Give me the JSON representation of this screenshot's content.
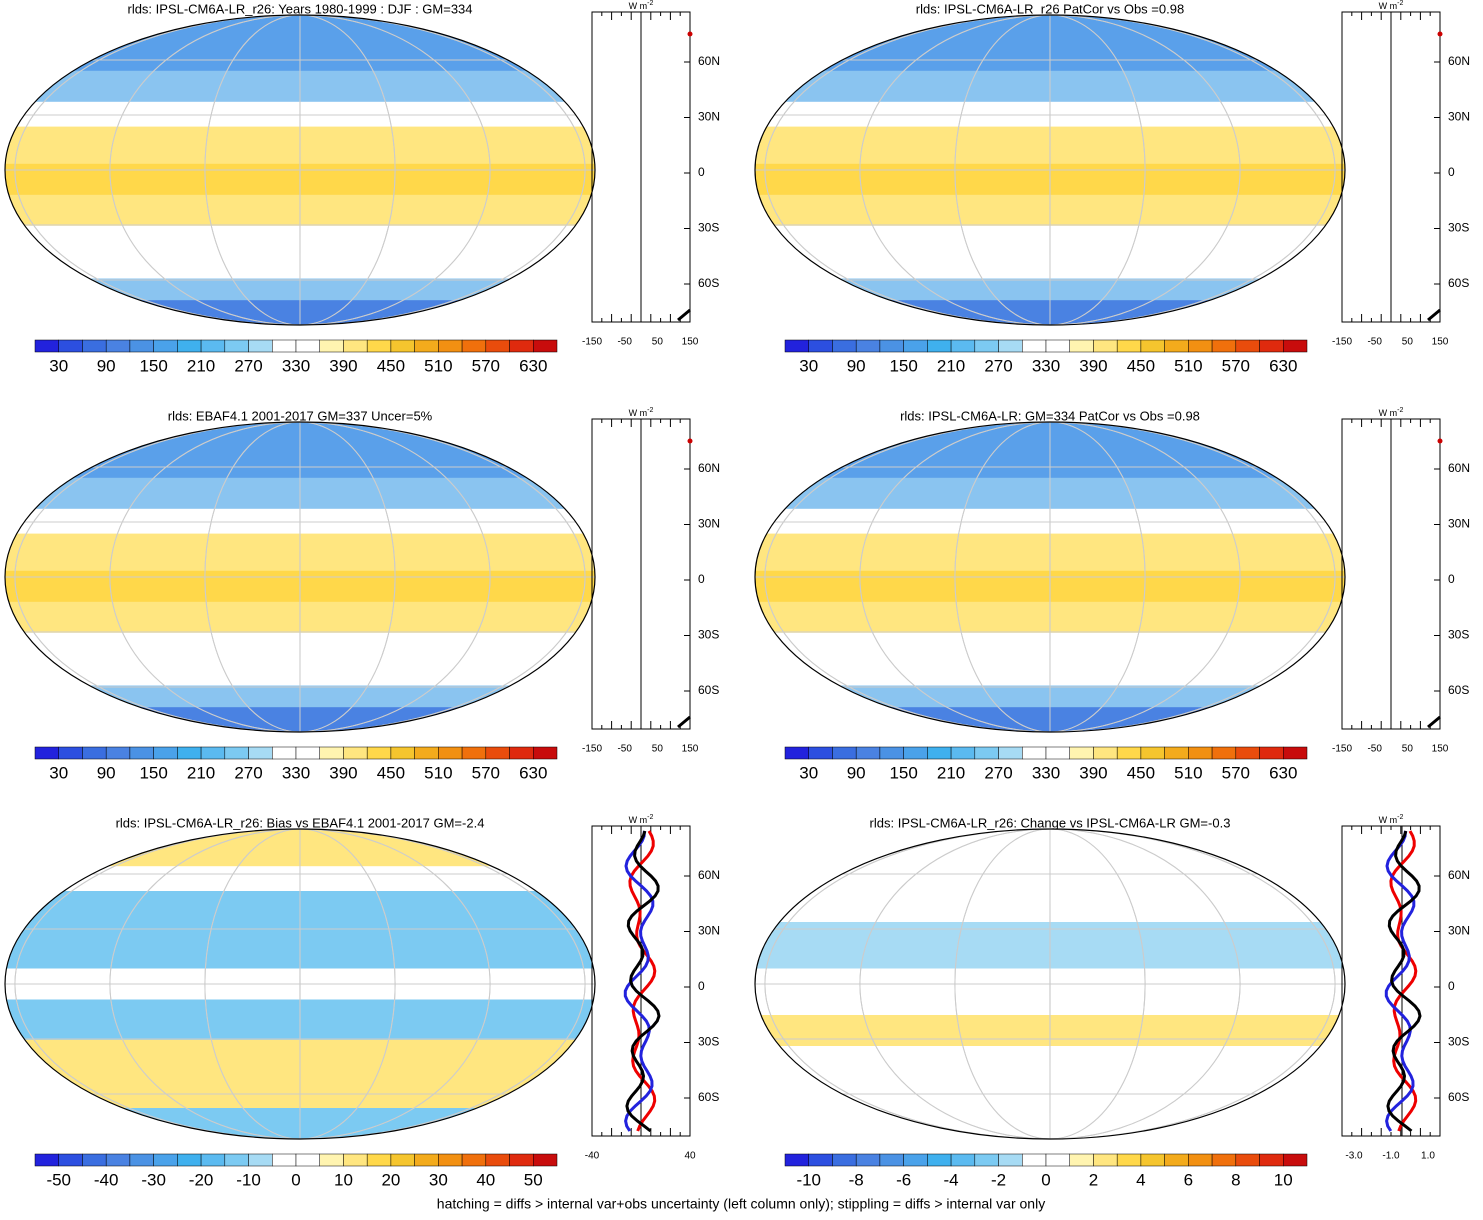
{
  "panels": [
    {
      "title": "rlds: IPSL-CM6A-LR_r26: Years 1980-1999 : DJF : GM=334",
      "colorbar": [
        "30",
        "90",
        "150",
        "210",
        "270",
        "330",
        "390",
        "450",
        "510",
        "570",
        "630"
      ],
      "profile": {
        "unit": "W m",
        "unit_exp": "-2",
        "xlabels": [
          "-150",
          "-50",
          "50",
          "150"
        ],
        "ylabels": [
          "60N",
          "30N",
          "0",
          "30S",
          "60S"
        ]
      }
    },
    {
      "title": "rlds: IPSL-CM6A-LR_r26 PatCor vs Obs =0.98",
      "colorbar": [
        "30",
        "90",
        "150",
        "210",
        "270",
        "330",
        "390",
        "450",
        "510",
        "570",
        "630"
      ],
      "profile": {
        "unit": "W m",
        "unit_exp": "-2",
        "xlabels": [
          "-150",
          "-50",
          "50",
          "150"
        ],
        "ylabels": [
          "60N",
          "30N",
          "0",
          "30S",
          "60S"
        ]
      }
    },
    {
      "title": "rlds: EBAF4.1 2001-2017 GM=337 Uncer=5%",
      "colorbar": [
        "30",
        "90",
        "150",
        "210",
        "270",
        "330",
        "390",
        "450",
        "510",
        "570",
        "630"
      ],
      "profile": {
        "unit": "W m",
        "unit_exp": "-2",
        "xlabels": [
          "-150",
          "-50",
          "50",
          "150"
        ],
        "ylabels": [
          "60N",
          "30N",
          "0",
          "30S",
          "60S"
        ]
      }
    },
    {
      "title": "rlds: IPSL-CM6A-LR: GM=334 PatCor vs Obs =0.98",
      "colorbar": [
        "30",
        "90",
        "150",
        "210",
        "270",
        "330",
        "390",
        "450",
        "510",
        "570",
        "630"
      ],
      "profile": {
        "unit": "W m",
        "unit_exp": "-2",
        "xlabels": [
          "-150",
          "-50",
          "50",
          "150"
        ],
        "ylabels": [
          "60N",
          "30N",
          "0",
          "30S",
          "60S"
        ]
      }
    },
    {
      "title": "rlds: IPSL-CM6A-LR_r26: Bias vs EBAF4.1 2001-2017 GM=-2.4",
      "colorbar": [
        "-50",
        "-40",
        "-30",
        "-20",
        "-10",
        "0",
        "10",
        "20",
        "30",
        "40",
        "50"
      ],
      "profile": {
        "unit": "W m",
        "unit_exp": "-2",
        "xlabels": [
          "-40",
          "40"
        ],
        "ylabels": [
          "60N",
          "30N",
          "0",
          "30S",
          "60S"
        ]
      }
    },
    {
      "title": "rlds: IPSL-CM6A-LR_r26: Change vs IPSL-CM6A-LR GM=-0.3",
      "colorbar": [
        "-10",
        "-8",
        "-6",
        "-4",
        "-2",
        "0",
        "2",
        "4",
        "6",
        "8",
        "10"
      ],
      "profile": {
        "unit": "W m",
        "unit_exp": "-2",
        "xlabels": [
          "-3.0",
          "-1.0",
          "1.0"
        ],
        "ylabels": [
          "60N",
          "30N",
          "0",
          "30S",
          "60S"
        ]
      }
    }
  ],
  "footer": "hatching = diffs > internal var+obs uncertainty (left column only); stippling = diffs > internal var only"
}
